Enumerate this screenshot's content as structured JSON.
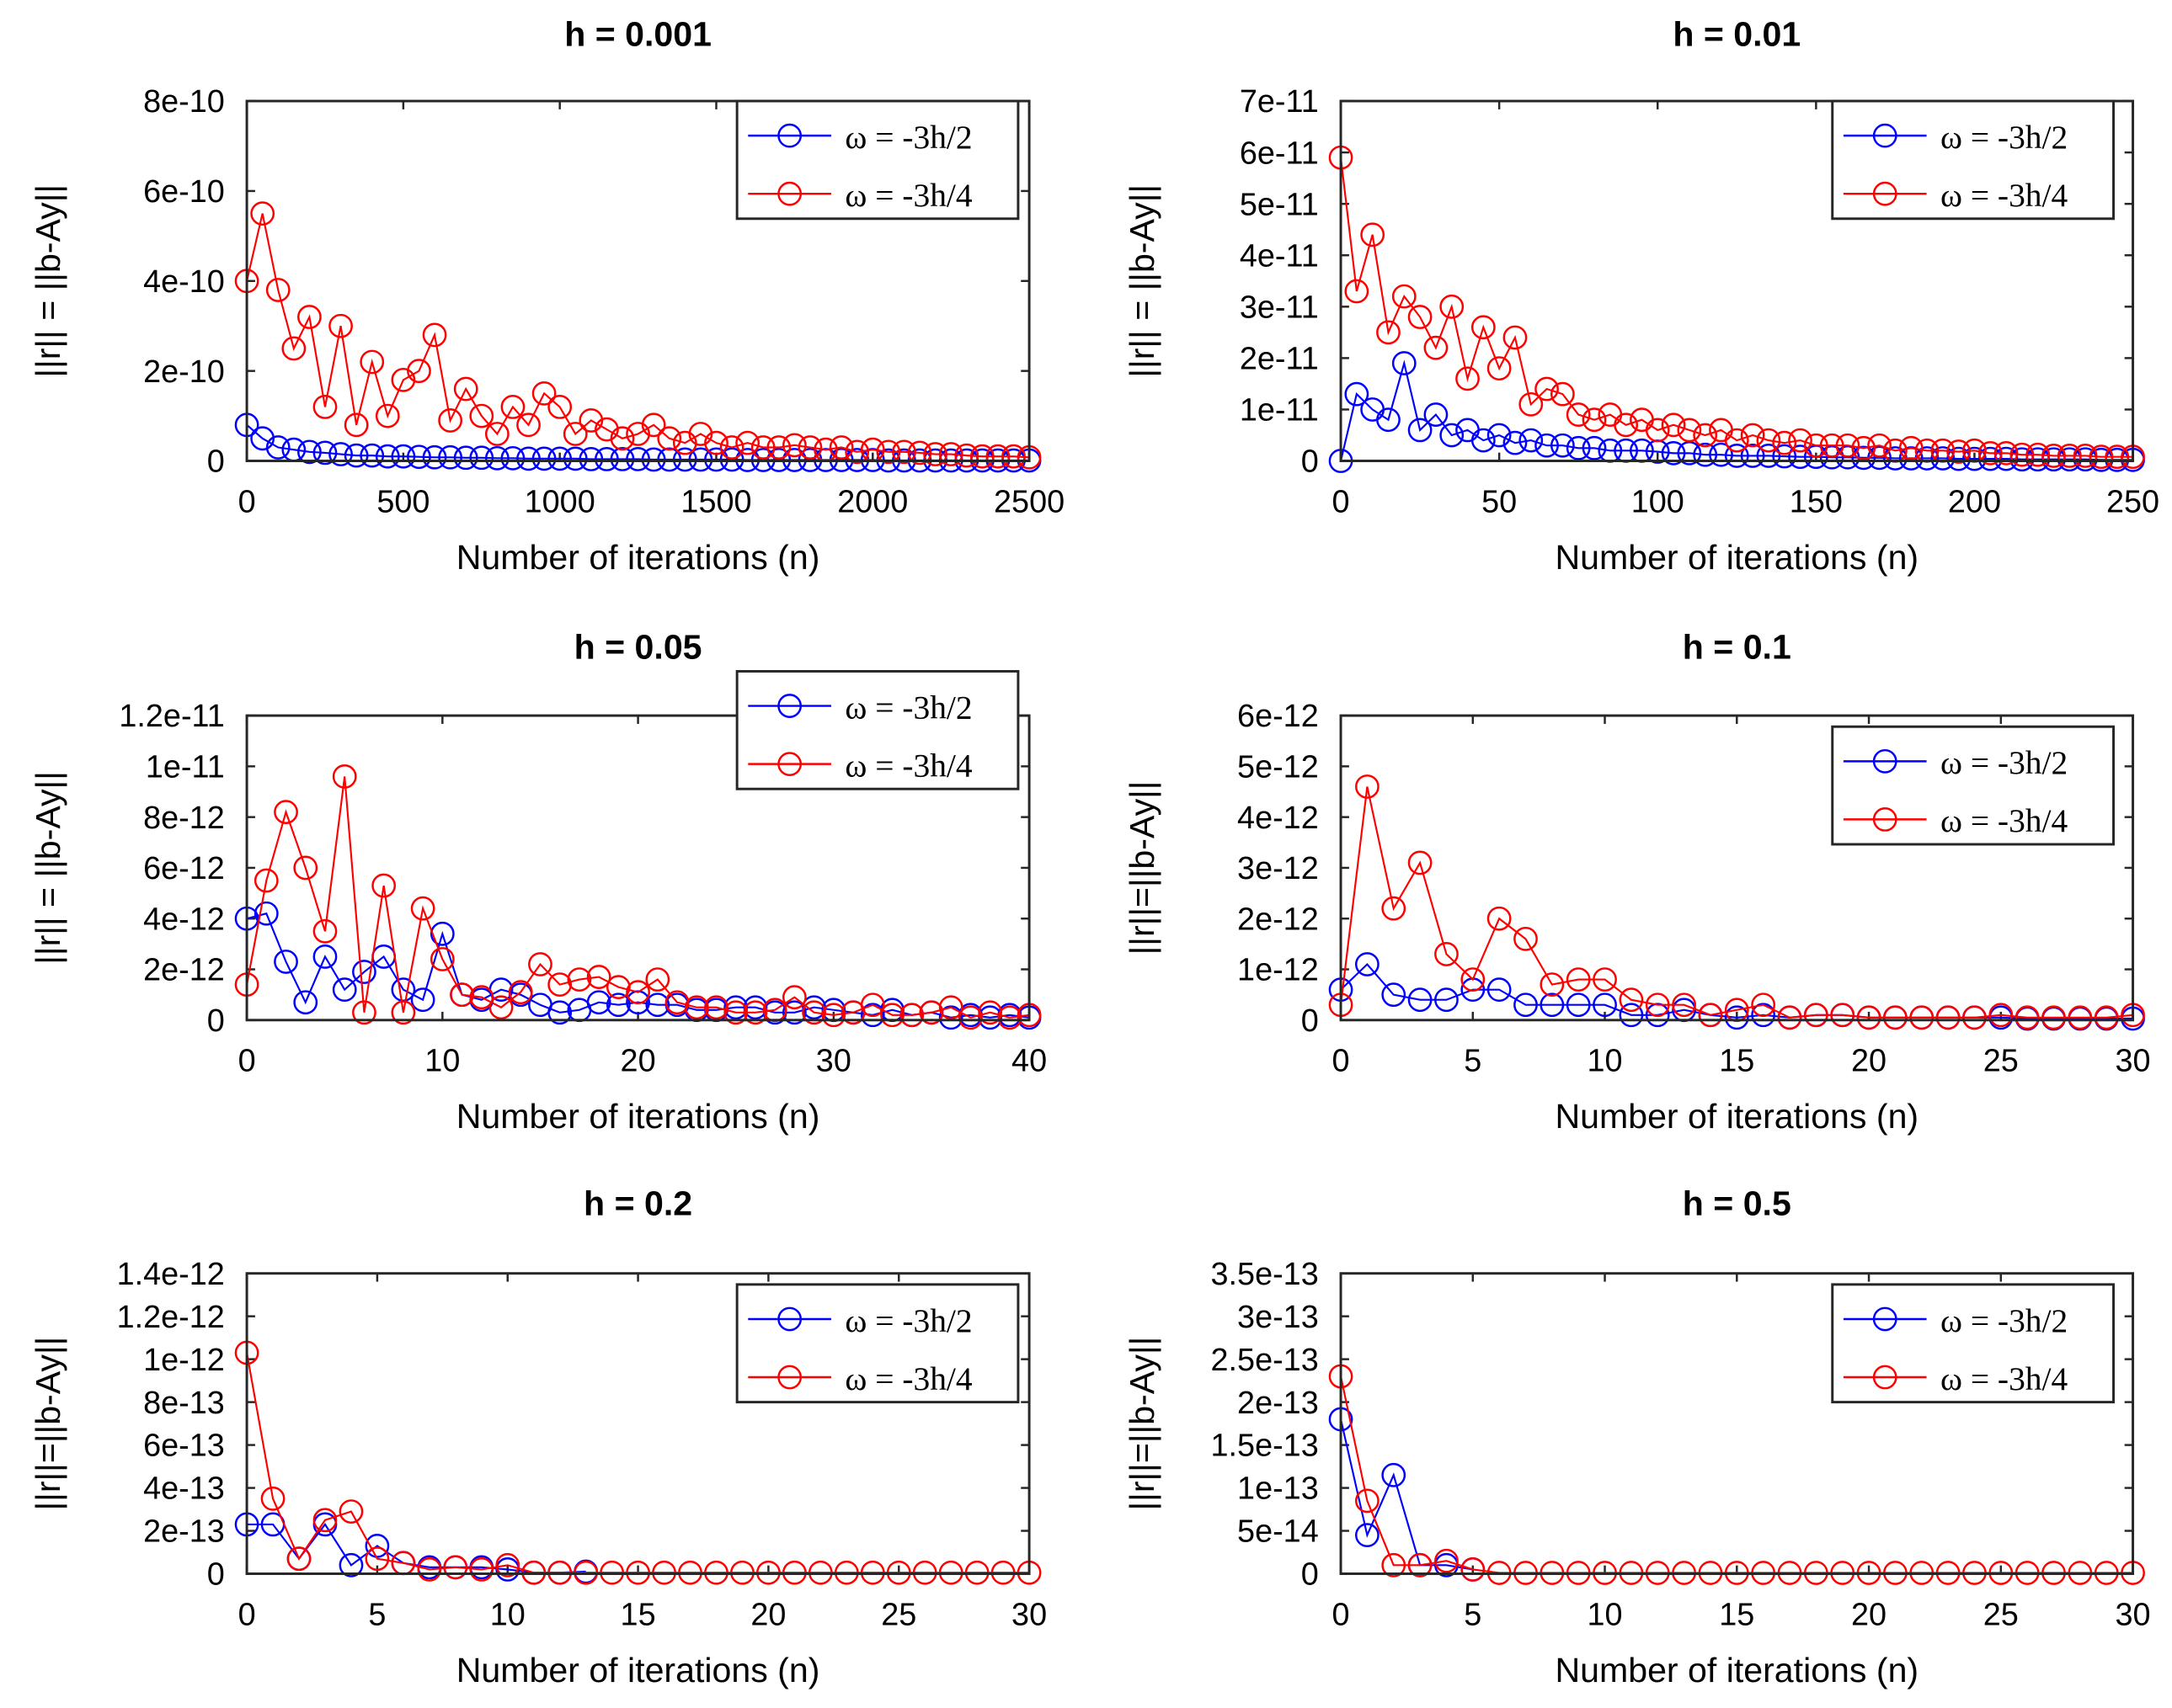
{
  "colors": {
    "series1": "#0000ff",
    "series2": "#ff0000",
    "axis": "#262626"
  },
  "chart_data": [
    {
      "type": "line",
      "title": "h = 0.001",
      "xlabel": "Number of iterations (n)",
      "ylabel": "||r|| = ||b-Ay||",
      "xlim": [
        0,
        2500
      ],
      "ylim": [
        0,
        8e-10
      ],
      "xticks": [
        "0",
        "500",
        "1000",
        "1500",
        "2000",
        "2500"
      ],
      "xtick_values": [
        0,
        500,
        1000,
        1500,
        2000,
        2500
      ],
      "yticks": [
        "0",
        "2e-10",
        "4e-10",
        "6e-10",
        "8e-10"
      ],
      "ytick_values": [
        0,
        2e-10,
        4e-10,
        6e-10,
        8e-10
      ],
      "legend": [
        "ω = -3h/2",
        "ω = -3h/4"
      ],
      "legend_position": "top-right",
      "y_scale": 1e-10,
      "x_step": 50,
      "note_sampled": true,
      "series": [
        {
          "name": "ω = -3h/2",
          "values": [
            0.8,
            0.5,
            0.3,
            0.25,
            0.2,
            0.18,
            0.15,
            0.12,
            0.12,
            0.1,
            0.1,
            0.09,
            0.08,
            0.08,
            0.07,
            0.07,
            0.06,
            0.06,
            0.05,
            0.05,
            0.05,
            0.05,
            0.04,
            0.04,
            0.04,
            0.04,
            0.03,
            0.03,
            0.03,
            0.03,
            0.03,
            0.03,
            0.02,
            0.02,
            0.02,
            0.02,
            0.02,
            0.02,
            0.02,
            0.02,
            0.02,
            0.01,
            0.01,
            0.01,
            0.01,
            0.01,
            0.01,
            0.01,
            0.01,
            0.01,
            0.01
          ]
        },
        {
          "name": "ω = -3h/4",
          "values": [
            4.0,
            5.5,
            3.8,
            2.5,
            3.2,
            1.2,
            3.0,
            0.8,
            2.2,
            1.0,
            1.8,
            2.0,
            2.8,
            0.9,
            1.6,
            1.0,
            0.6,
            1.2,
            0.8,
            1.5,
            1.2,
            0.6,
            0.9,
            0.7,
            0.5,
            0.6,
            0.8,
            0.5,
            0.4,
            0.6,
            0.4,
            0.3,
            0.4,
            0.3,
            0.3,
            0.35,
            0.3,
            0.25,
            0.3,
            0.2,
            0.25,
            0.2,
            0.2,
            0.18,
            0.15,
            0.15,
            0.12,
            0.1,
            0.1,
            0.1,
            0.08
          ]
        }
      ]
    },
    {
      "type": "line",
      "title": "h = 0.01",
      "xlabel": "Number of iterations (n)",
      "ylabel": "||r|| = ||b-Ay||",
      "xlim": [
        0,
        250
      ],
      "ylim": [
        0,
        7e-11
      ],
      "xticks": [
        "0",
        "50",
        "100",
        "150",
        "200",
        "250"
      ],
      "xtick_values": [
        0,
        50,
        100,
        150,
        200,
        250
      ],
      "yticks": [
        "0",
        "1e-11",
        "2e-11",
        "3e-11",
        "4e-11",
        "5e-11",
        "6e-11",
        "7e-11"
      ],
      "ytick_values": [
        0,
        1e-11,
        2e-11,
        3e-11,
        4e-11,
        5e-11,
        6e-11,
        7e-11
      ],
      "legend": [
        "ω = -3h/2",
        "ω = -3h/4"
      ],
      "legend_position": "top-right",
      "y_scale": 1e-11,
      "x_step": 5,
      "series": [
        {
          "name": "ω = -3h/2",
          "values": [
            0,
            1.3,
            1.0,
            0.8,
            1.9,
            0.6,
            0.9,
            0.5,
            0.6,
            0.4,
            0.5,
            0.35,
            0.4,
            0.3,
            0.3,
            0.25,
            0.25,
            0.2,
            0.2,
            0.2,
            0.18,
            0.15,
            0.15,
            0.12,
            0.12,
            0.1,
            0.1,
            0.1,
            0.09,
            0.08,
            0.08,
            0.07,
            0.07,
            0.06,
            0.06,
            0.05,
            0.05,
            0.05,
            0.05,
            0.04,
            0.04,
            0.04,
            0.04,
            0.03,
            0.03,
            0.03,
            0.03,
            0.03,
            0.02,
            0.02,
            0.02
          ]
        },
        {
          "name": "ω = -3h/4",
          "values": [
            5.9,
            3.3,
            4.4,
            2.5,
            3.2,
            2.8,
            2.2,
            3.0,
            1.6,
            2.6,
            1.8,
            2.4,
            1.1,
            1.4,
            1.3,
            0.9,
            0.8,
            0.9,
            0.7,
            0.8,
            0.6,
            0.7,
            0.6,
            0.5,
            0.6,
            0.4,
            0.5,
            0.4,
            0.35,
            0.4,
            0.3,
            0.3,
            0.3,
            0.25,
            0.3,
            0.2,
            0.25,
            0.2,
            0.2,
            0.18,
            0.2,
            0.15,
            0.15,
            0.12,
            0.12,
            0.1,
            0.1,
            0.1,
            0.08,
            0.08,
            0.08
          ]
        }
      ]
    },
    {
      "type": "line",
      "title": "h = 0.05",
      "xlabel": "Number of iterations (n)",
      "ylabel": "||r|| = ||b-Ay||",
      "xlim": [
        0,
        40
      ],
      "ylim": [
        0,
        1.2e-11
      ],
      "xticks": [
        "0",
        "10",
        "20",
        "30",
        "40"
      ],
      "xtick_values": [
        0,
        10,
        20,
        30,
        40
      ],
      "yticks": [
        "0",
        "2e-12",
        "4e-12",
        "6e-12",
        "8e-12",
        "1e-11",
        "1.2e-11"
      ],
      "ytick_values": [
        0,
        2e-12,
        4e-12,
        6e-12,
        8e-12,
        1e-11,
        1.2e-11
      ],
      "legend": [
        "ω = -3h/2",
        "ω = -3h/4"
      ],
      "legend_position": "top-right",
      "y_scale": 1e-12,
      "x_step": 1,
      "series": [
        {
          "name": "ω = -3h/2",
          "values": [
            4.0,
            4.2,
            2.3,
            0.7,
            2.5,
            1.2,
            1.9,
            2.5,
            1.2,
            0.8,
            3.4,
            1.0,
            0.8,
            1.2,
            1.0,
            0.6,
            0.3,
            0.4,
            0.7,
            0.6,
            0.7,
            0.6,
            0.6,
            0.4,
            0.4,
            0.5,
            0.5,
            0.3,
            0.3,
            0.5,
            0.4,
            0.3,
            0.2,
            0.4,
            0.2,
            0.3,
            0.1,
            0.2,
            0.1,
            0.2,
            0.1
          ]
        },
        {
          "name": "ω = -3h/4",
          "values": [
            1.4,
            5.5,
            8.2,
            6.0,
            3.5,
            9.6,
            0.3,
            5.3,
            0.3,
            4.4,
            2.4,
            1.0,
            0.9,
            0.5,
            1.1,
            2.2,
            1.4,
            1.6,
            1.7,
            1.3,
            1.1,
            1.6,
            0.7,
            0.5,
            0.5,
            0.3,
            0.3,
            0.4,
            0.9,
            0.3,
            0.2,
            0.3,
            0.6,
            0.2,
            0.2,
            0.3,
            0.5,
            0.1,
            0.3,
            0.1,
            0.2
          ]
        }
      ]
    },
    {
      "type": "line",
      "title": "h = 0.1",
      "xlabel": "Number of iterations (n)",
      "ylabel": "||r||=||b-Ay||",
      "xlim": [
        0,
        30
      ],
      "ylim": [
        0,
        6e-12
      ],
      "xticks": [
        "0",
        "5",
        "10",
        "15",
        "20",
        "25",
        "30"
      ],
      "xtick_values": [
        0,
        5,
        10,
        15,
        20,
        25,
        30
      ],
      "yticks": [
        "0",
        "1e-12",
        "2e-12",
        "3e-12",
        "4e-12",
        "5e-12",
        "6e-12"
      ],
      "ytick_values": [
        0,
        1e-12,
        2e-12,
        3e-12,
        4e-12,
        5e-12,
        6e-12
      ],
      "legend": [
        "ω = -3h/2",
        "ω = -3h/4"
      ],
      "legend_position": "top-right",
      "y_scale": 1e-12,
      "x_step": 1,
      "series": [
        {
          "name": "ω = -3h/2",
          "values": [
            0.6,
            1.1,
            0.5,
            0.4,
            0.4,
            0.6,
            0.6,
            0.3,
            0.3,
            0.3,
            0.3,
            0.1,
            0.1,
            0.2,
            0.1,
            0.05,
            0.1,
            0.05,
            0.1,
            0.1,
            0.05,
            0.05,
            0.05,
            0.05,
            0.05,
            0.05,
            0.03,
            0.03,
            0.03,
            0.03,
            0.03
          ]
        },
        {
          "name": "ω = -3h/4",
          "values": [
            0.3,
            4.6,
            2.2,
            3.1,
            1.3,
            0.8,
            2.0,
            1.6,
            0.7,
            0.8,
            0.8,
            0.4,
            0.3,
            0.3,
            0.1,
            0.2,
            0.3,
            0.05,
            0.1,
            0.1,
            0.05,
            0.05,
            0.05,
            0.05,
            0.05,
            0.1,
            0.05,
            0.05,
            0.05,
            0.05,
            0.1
          ]
        }
      ]
    },
    {
      "type": "line",
      "title": "h = 0.2",
      "xlabel": "Number of iterations (n)",
      "ylabel": "||r||=||b-Ay||",
      "xlim": [
        0,
        30
      ],
      "ylim": [
        0,
        1.4e-12
      ],
      "xticks": [
        "0",
        "5",
        "10",
        "15",
        "20",
        "25",
        "30"
      ],
      "xtick_values": [
        0,
        5,
        10,
        15,
        20,
        25,
        30
      ],
      "yticks": [
        "0",
        "2e-13",
        "4e-13",
        "6e-13",
        "8e-13",
        "1e-12",
        "1.2e-12",
        "1.4e-12"
      ],
      "ytick_values": [
        0,
        2e-13,
        4e-13,
        6e-13,
        8e-13,
        1e-12,
        1.2e-12,
        1.4e-12
      ],
      "legend": [
        "ω = -3h/2",
        "ω = -3h/4"
      ],
      "legend_position": "top-right",
      "y_scale": 1e-13,
      "x_step": 1,
      "series": [
        {
          "name": "ω = -3h/2",
          "values": [
            2.3,
            2.3,
            0.7,
            2.3,
            0.4,
            1.3,
            0.5,
            0.3,
            0.3,
            0.3,
            0.2,
            0.05,
            0.05,
            0.1
          ]
        },
        {
          "name": "ω = -3h/4",
          "values": [
            10.3,
            3.5,
            0.7,
            2.5,
            2.9,
            0.7,
            0.5,
            0.2,
            0.3,
            0.2,
            0.4,
            0.05,
            0.05,
            0.05,
            0.05,
            0.05,
            0.05,
            0.05,
            0.05,
            0.05,
            0.05,
            0.05,
            0.05,
            0.05,
            0.05,
            0.05,
            0.05,
            0.05,
            0.05,
            0.05,
            0.05
          ]
        }
      ]
    },
    {
      "type": "line",
      "title": "h = 0.5",
      "xlabel": "Number of iterations (n)",
      "ylabel": "||r||=||b-Ay||",
      "xlim": [
        0,
        30
      ],
      "ylim": [
        0,
        3.5e-13
      ],
      "xticks": [
        "0",
        "5",
        "10",
        "15",
        "20",
        "25",
        "30"
      ],
      "xtick_values": [
        0,
        5,
        10,
        15,
        20,
        25,
        30
      ],
      "yticks": [
        "0",
        "5e-14",
        "1e-13",
        "1.5e-13",
        "2e-13",
        "2.5e-13",
        "3e-13",
        "3.5e-13"
      ],
      "ytick_values": [
        0,
        5e-14,
        1e-13,
        1.5e-13,
        2e-13,
        2.5e-13,
        3e-13,
        3.5e-13
      ],
      "legend": [
        "ω = -3h/2",
        "ω = -3h/4"
      ],
      "legend_position": "top-right",
      "y_scale": 1e-13,
      "x_step": 1,
      "series": [
        {
          "name": "ω = -3h/2",
          "values": [
            1.8,
            0.45,
            1.15,
            0.1,
            0.1,
            0.05
          ]
        },
        {
          "name": "ω = -3h/4",
          "values": [
            2.3,
            0.85,
            0.1,
            0.1,
            0.15,
            0.05,
            0.01,
            0.01,
            0.01,
            0.01,
            0.01,
            0.01,
            0.01,
            0.01,
            0.01,
            0.01,
            0.01,
            0.01,
            0.01,
            0.01,
            0.01,
            0.01,
            0.01,
            0.01,
            0.01,
            0.01,
            0.01,
            0.01,
            0.01,
            0.01,
            0.01
          ]
        }
      ]
    }
  ]
}
